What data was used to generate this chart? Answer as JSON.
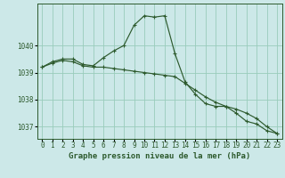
{
  "title": "Graphe pression niveau de la mer (hPa)",
  "background_color": "#cce8e8",
  "grid_color": "#99ccbb",
  "line_color": "#2d5a2d",
  "marker_color": "#2d5a2d",
  "xlim": [
    -0.5,
    23.5
  ],
  "ylim": [
    1036.55,
    1041.55
  ],
  "yticks": [
    1037,
    1038,
    1039,
    1040
  ],
  "xtick_labels": [
    "0",
    "1",
    "2",
    "3",
    "4",
    "5",
    "6",
    "7",
    "8",
    "9",
    "10",
    "11",
    "12",
    "13",
    "14",
    "15",
    "16",
    "17",
    "18",
    "19",
    "20",
    "21",
    "22",
    "23"
  ],
  "series1_x": [
    0,
    1,
    2,
    3,
    4,
    5,
    6,
    7,
    8,
    9,
    10,
    11,
    12,
    13,
    14,
    15,
    16,
    17,
    18,
    19,
    20,
    21,
    22,
    23
  ],
  "series1_y": [
    1039.2,
    1039.4,
    1039.5,
    1039.5,
    1039.3,
    1039.25,
    1039.55,
    1039.8,
    1040.0,
    1040.75,
    1041.1,
    1041.05,
    1041.1,
    1039.7,
    1038.65,
    1038.2,
    1037.85,
    1037.75,
    1037.75,
    1037.5,
    1037.2,
    1037.1,
    1036.85,
    1036.75
  ],
  "series2_x": [
    0,
    1,
    2,
    3,
    4,
    5,
    6,
    7,
    8,
    9,
    10,
    11,
    12,
    13,
    14,
    15,
    16,
    17,
    18,
    19,
    20,
    21,
    22,
    23
  ],
  "series2_y": [
    1039.2,
    1039.35,
    1039.45,
    1039.4,
    1039.25,
    1039.2,
    1039.2,
    1039.15,
    1039.1,
    1039.05,
    1039.0,
    1038.95,
    1038.9,
    1038.85,
    1038.6,
    1038.35,
    1038.1,
    1037.9,
    1037.75,
    1037.65,
    1037.5,
    1037.3,
    1037.0,
    1036.75
  ],
  "title_fontsize": 6.5,
  "tick_fontsize": 5.5
}
